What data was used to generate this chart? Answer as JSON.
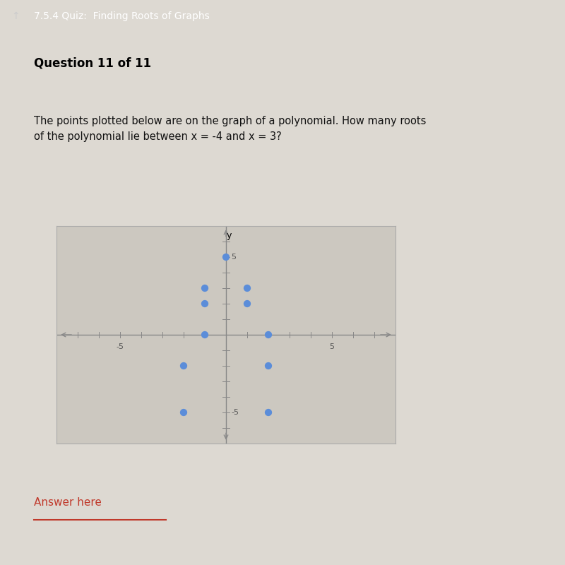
{
  "points": [
    [
      0,
      5
    ],
    [
      -1,
      3
    ],
    [
      1,
      3
    ],
    [
      -1,
      2
    ],
    [
      1,
      2
    ],
    [
      -1,
      0
    ],
    [
      2,
      0
    ],
    [
      -2,
      -2
    ],
    [
      2,
      -2
    ],
    [
      -2,
      -5
    ],
    [
      2,
      -5
    ]
  ],
  "point_color": "#5b8dd9",
  "point_size": 55,
  "xlim": [
    -8,
    8
  ],
  "ylim": [
    -7,
    7
  ],
  "header_bg_color": "#317d74",
  "header_text": "7.5.4 Quiz:  Finding Roots of Graphs",
  "question_text": "Question 11 of 11",
  "body_text": "The points plotted below are on the graph of a polynomial. How many roots\nof the polynomial lie between x = -4 and x = 3?",
  "answer_text": "Answer here",
  "bg_color": "#ddd9d2",
  "graph_bg": "#ccc8c0",
  "graph_border": "#aaaaaa",
  "axis_color": "#888888",
  "tick_color": "#888888",
  "label_color": "#555555"
}
